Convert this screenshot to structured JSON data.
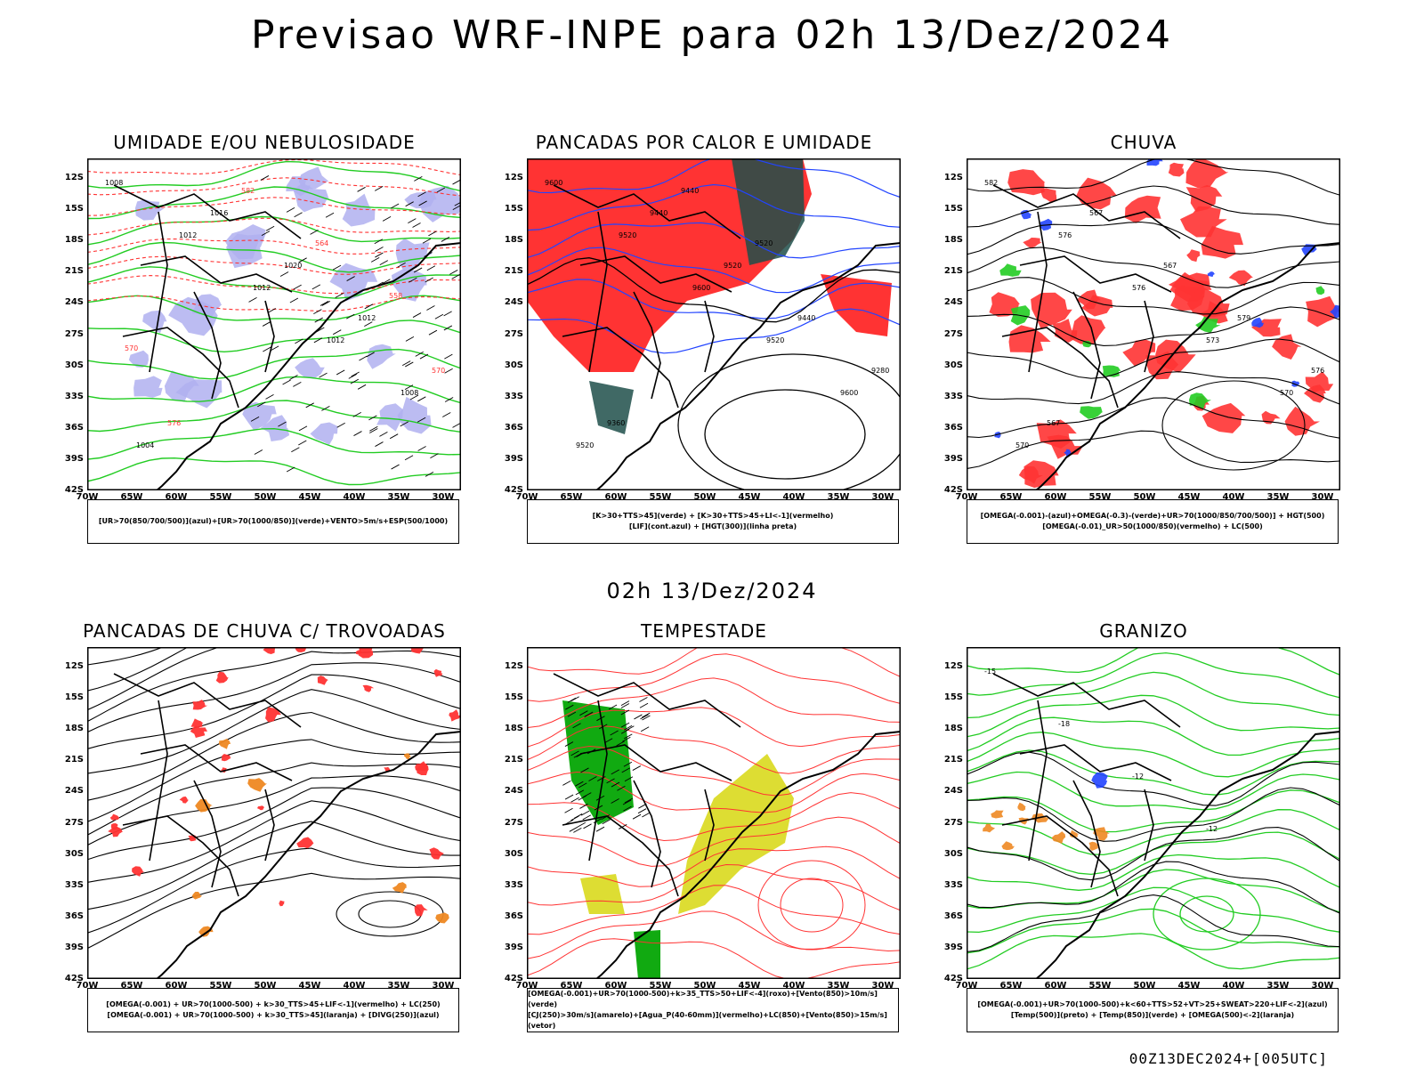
{
  "header": {
    "title": "Previsao WRF-INPE  para 02h 13/Dez/2024"
  },
  "mid_label": "02h 13/Dez/2024",
  "footer": {
    "stamp": "00Z13DEC2024+[005UTC]"
  },
  "axes": {
    "lat_labels": [
      "12S",
      "15S",
      "18S",
      "21S",
      "24S",
      "27S",
      "30S",
      "33S",
      "36S",
      "39S",
      "42S"
    ],
    "lon_labels": [
      "70W",
      "65W",
      "60W",
      "55W",
      "50W",
      "45W",
      "40W",
      "35W",
      "30W"
    ]
  },
  "colors": {
    "green": "#22cc22",
    "red": "#ff3333",
    "blue": "#2244ff",
    "lavender": "#b0b0f0",
    "dark_teal": "#1f4f4a",
    "orange": "#ee8822",
    "yellow": "#dddd33",
    "deep_green": "#11aa11"
  },
  "panels": [
    {
      "title": "UMIDADE E/OU NEBULOSIDADE",
      "legend": [
        "[UR>70(850/700/500)](azul)+[UR>70(1000/850)](verde)+VENTO>5m/s+ESP(500/1000)"
      ],
      "contour_labels": [
        "1008",
        "1012",
        "1012",
        "1012",
        "1008",
        "1004",
        "1016",
        "1020",
        "1012",
        "570",
        "576",
        "582",
        "564",
        "558",
        "570"
      ]
    },
    {
      "title": "PANCADAS POR CALOR E UMIDADE",
      "legend": [
        "[K>30+TTS>45](verde) + [K>30+TTS>45+LI<-1](vermelho)",
        "[LIF](cont.azul) + [HGT(300)](linha preta)"
      ],
      "contour_labels": [
        "9600",
        "9520",
        "9600",
        "9520",
        "9600",
        "9520",
        "9440",
        "9520",
        "9440",
        "9280",
        "9360",
        "9440",
        "9520"
      ]
    },
    {
      "title": "CHUVA",
      "legend": [
        "[OMEGA(-0.001)-(azul)+OMEGA(-0.3)-(verde)+UR>70(1000/850/700/500)] + HGT(500)",
        "[OMEGA(-0.01)_UR>50(1000/850)(vermelho) + LC(500)"
      ],
      "contour_labels": [
        "582",
        "576",
        "576",
        "573",
        "570",
        "570",
        "567",
        "567",
        "579",
        "576",
        "567"
      ]
    },
    {
      "title": "PANCADAS DE CHUVA C/ TROVOADAS",
      "legend": [
        "[OMEGA(-0.001) + UR>70(1000-500) + k>30_TTS>45+LIF<-1](vermelho) + LC(250)",
        "[OMEGA(-0.001) + UR>70(1000-500) + k>30_TTS>45](laranja) + [DIVG(250)](azul)"
      ],
      "contour_labels": []
    },
    {
      "title": "TEMPESTADE",
      "legend": [
        "[OMEGA(-0.001)+UR>70(1000-500)+k>35_TTS>50+LIF<-4](roxo)+[Vento(850)>10m/s](verde)",
        "[CJ(250)>30m/s](amarelo)+[Agua_P(40-60mm)](vermelho)+LC(850)+[Vento(850)>15m/s](vetor)"
      ],
      "contour_labels": []
    },
    {
      "title": "GRANIZO",
      "legend": [
        "[OMEGA(-0.001)+UR>70(1000-500)+k<60+TTS>52+VT>25+SWEAT>220+LIF<-2](azul)",
        "[Temp(500)](preto) + [Temp(850)](verde) + [OMEGA(500)<-2](laranja)"
      ],
      "contour_labels": [
        "-15",
        "-18",
        "-12",
        "-12"
      ]
    }
  ]
}
